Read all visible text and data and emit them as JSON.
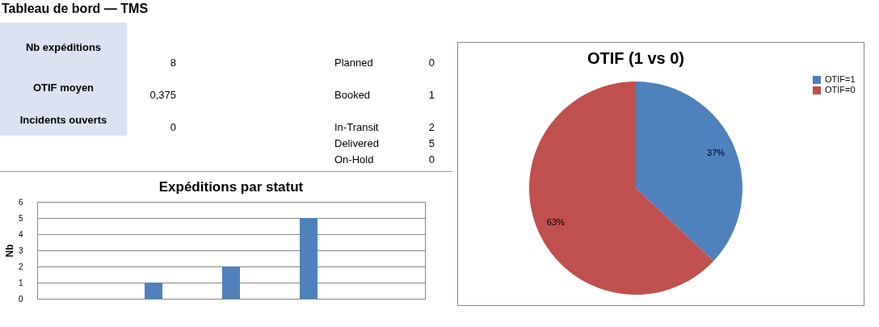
{
  "chart_data": [
    {
      "type": "other",
      "title": "Tableau de bord — TMS",
      "annotations": [
        "Nb expéditions",
        "8",
        "OTIF moyen",
        "0,375",
        "Incidents ouverts",
        "0",
        "Planned",
        "0",
        "Booked",
        "1",
        "In-Transit",
        "2",
        "Delivered",
        "5",
        "On-Hold",
        "0"
      ]
    },
    {
      "type": "bar",
      "title": "Expéditions par statut",
      "ylabel": "Nb",
      "categories": [
        null,
        null,
        null,
        null,
        null
      ],
      "values": [
        0,
        1,
        2,
        5,
        0
      ],
      "color": "#4f81bd",
      "ylim": [
        0,
        6
      ],
      "yticks": [
        0,
        1,
        2,
        3,
        4,
        5,
        6
      ],
      "grid": "y",
      "tick_labels": "y"
    },
    {
      "type": "pie",
      "title": "OTIF (1 vs 0)",
      "categories": [
        "OTIF=1",
        "OTIF=0"
      ],
      "values": [
        37,
        63
      ],
      "colors": [
        "#4f81bd",
        "#c0504d"
      ],
      "value_labels": [
        "37%",
        "63%"
      ],
      "legend": "right"
    }
  ]
}
